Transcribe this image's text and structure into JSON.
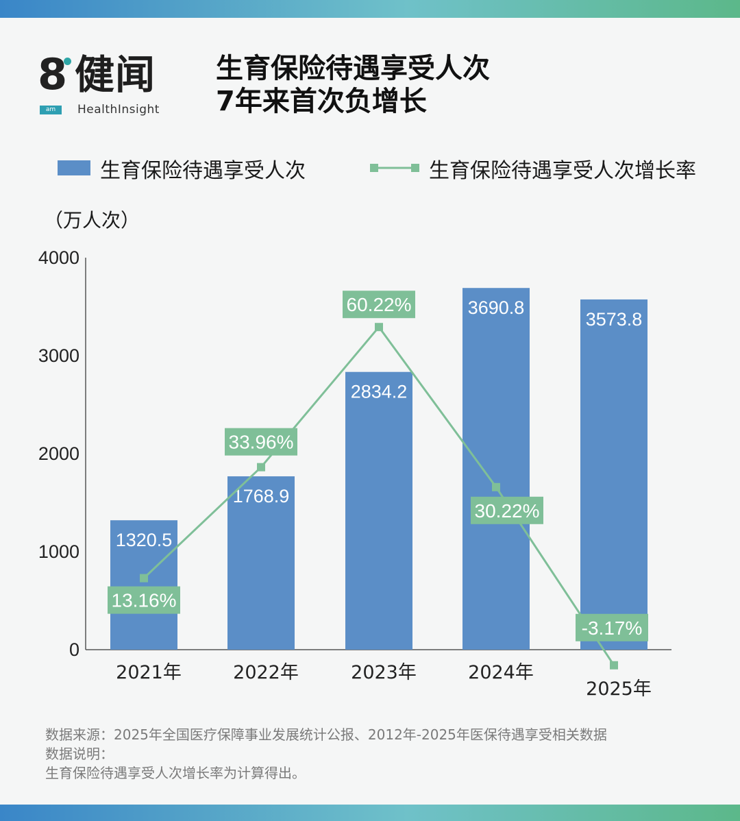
{
  "header": {
    "logo_brand": "健闻",
    "logo_badge": "am",
    "logo_sub": "HealthInsight",
    "title_line1": "生育保险待遇享受人次",
    "title_line2": "7年来首次负增长"
  },
  "legend": {
    "bar_label": "生育保险待遇享受人次",
    "line_label": "生育保险待遇享受人次增长率"
  },
  "unit_label": "（万人次）",
  "colors": {
    "bar": "#5b8ec7",
    "line": "#7fbf98",
    "label_box": "#7fbf98",
    "band_start": "#3a86c8",
    "band_end": "#5cb88a"
  },
  "chart_data": {
    "type": "bar",
    "categories": [
      "2021年",
      "2022年",
      "2023年",
      "2024年",
      "2025年"
    ],
    "series": [
      {
        "name": "生育保险待遇享受人次",
        "type": "bar",
        "values": [
          1320.5,
          1768.9,
          2834.2,
          3690.8,
          3573.8
        ],
        "labels": [
          "1320.5",
          "1768.9",
          "2834.2",
          "3690.8",
          "3573.8"
        ]
      },
      {
        "name": "生育保险待遇享受人次增长率",
        "type": "line",
        "values": [
          13.16,
          33.96,
          60.22,
          30.22,
          -3.17
        ],
        "labels": [
          "13.16%",
          "33.96%",
          "60.22%",
          "30.22%",
          "-3.17%"
        ]
      }
    ],
    "ylabel": "（万人次）",
    "ylim": [
      0,
      4000
    ],
    "yticks": [
      "0",
      "1000",
      "2000",
      "3000",
      "4000"
    ],
    "grid": false,
    "legend_position": "top"
  },
  "footer": {
    "source": "数据来源：2025年全国医疗保障事业发展统计公报、2012年-2025年医保待遇享受相关数据",
    "note_title": "数据说明：",
    "note_text": "生育保险待遇享受人次增长率为计算得出。"
  }
}
